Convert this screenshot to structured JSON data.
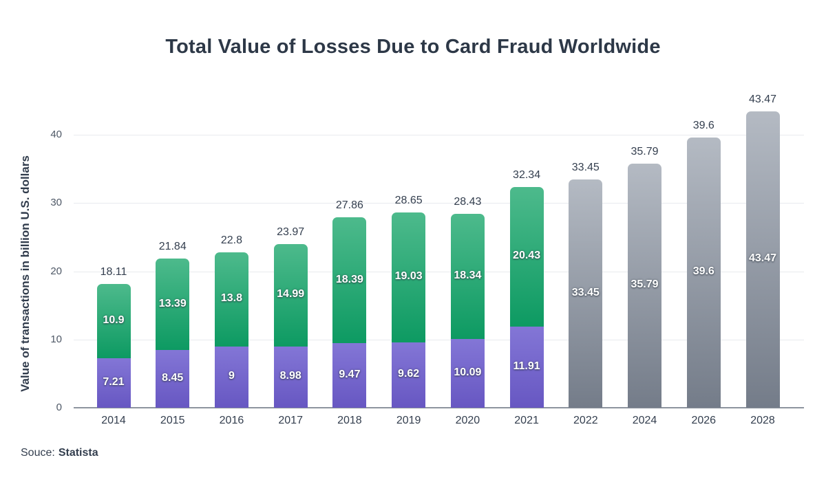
{
  "header": {
    "title": "Total Value of Losses Due to Card Fraud Worldwide"
  },
  "footer": {
    "source_label": "Souce:",
    "source_name": "Statista"
  },
  "chart_data": {
    "type": "bar",
    "stacked": true,
    "title": "Total Value of Losses Due to Card Fraud Worldwide",
    "xlabel": "",
    "ylabel": "Value of transactions in billion U.S. dollars",
    "ylim": [
      0,
      45
    ],
    "yticks": [
      0,
      10,
      20,
      30,
      40
    ],
    "grid": true,
    "legend": "none",
    "categories": [
      "2014",
      "2015",
      "2016",
      "2017",
      "2018",
      "2019",
      "2020",
      "2021",
      "2022",
      "2024",
      "2026",
      "2028"
    ],
    "series": [
      {
        "name": "bottom_segment",
        "style": "purple",
        "values": [
          7.21,
          8.45,
          9,
          8.98,
          9.47,
          9.62,
          10.09,
          11.91,
          null,
          null,
          null,
          null
        ]
      },
      {
        "name": "top_segment",
        "style": "green",
        "values": [
          10.9,
          13.39,
          13.8,
          14.99,
          18.39,
          19.03,
          18.34,
          20.43,
          null,
          null,
          null,
          null
        ]
      },
      {
        "name": "forecast",
        "style": "gray",
        "values": [
          null,
          null,
          null,
          null,
          null,
          null,
          null,
          null,
          33.45,
          35.79,
          39.6,
          43.47
        ]
      }
    ],
    "totals": [
      18.11,
      21.84,
      22.8,
      23.97,
      27.86,
      28.65,
      28.43,
      32.34,
      33.45,
      35.79,
      39.6,
      43.47
    ]
  },
  "colors": {
    "green_top": "#4dba8c",
    "green_bottom": "#0d9a62",
    "purple_top": "#8376d6",
    "purple_bottom": "#6757c2",
    "gray_top": "#b4bac3",
    "gray_bottom": "#747c89",
    "gridline": "#e8eaee",
    "baseline": "#8d949e",
    "text_dark": "#333e4e"
  }
}
